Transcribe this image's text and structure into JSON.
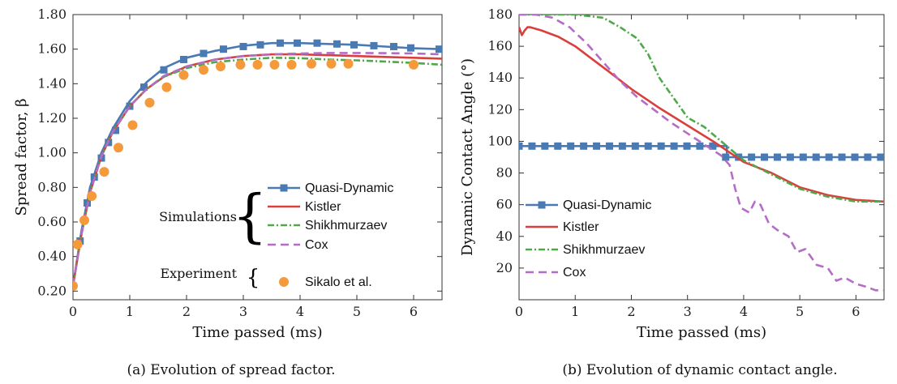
{
  "chart_data": [
    {
      "type": "line",
      "caption": "(a) Evolution of spread factor.",
      "xlabel": "Time passed (ms)",
      "ylabel": "Spread factor, β",
      "xlim": [
        0,
        6.5
      ],
      "ylim": [
        0.15,
        1.8
      ],
      "xticks": [
        "0",
        "1",
        "2",
        "3",
        "4",
        "5",
        "6"
      ],
      "yticks": [
        "0.20",
        "0.40",
        "0.60",
        "0.80",
        "1.00",
        "1.20",
        "1.40",
        "1.60",
        "1.80"
      ],
      "grid": false,
      "legend_position": "bottom-right",
      "legend_groups": [
        {
          "label": "Simulations",
          "brace": "{",
          "entries": [
            "Quasi-Dynamic",
            "Kistler",
            "Shikhmurzaev",
            "Cox"
          ]
        },
        {
          "label": "Experiment",
          "brace": "{",
          "entries": [
            "Sikalo et al."
          ]
        }
      ],
      "series": [
        {
          "name": "Quasi-Dynamic",
          "color": "#4a7ab4",
          "style": "solid",
          "marker": "square",
          "x": [
            0,
            0.15,
            0.3,
            0.5,
            0.7,
            1.0,
            1.3,
            1.6,
            2.0,
            2.5,
            3.0,
            3.5,
            4.0,
            4.5,
            5.0,
            5.5,
            6.0,
            6.5
          ],
          "y": [
            0.23,
            0.55,
            0.8,
            1.0,
            1.14,
            1.3,
            1.41,
            1.49,
            1.55,
            1.59,
            1.62,
            1.635,
            1.635,
            1.63,
            1.625,
            1.615,
            1.605,
            1.6
          ],
          "marker_x": [
            0,
            0.125,
            0.25,
            0.375,
            0.5,
            0.625,
            0.75,
            1.0,
            1.25,
            1.6,
            1.95,
            2.3,
            2.65,
            3.0,
            3.3,
            3.65,
            3.95,
            4.3,
            4.65,
            4.95,
            5.3,
            5.65,
            5.95,
            6.45
          ],
          "marker_y": [
            0.23,
            0.49,
            0.71,
            0.86,
            0.97,
            1.06,
            1.13,
            1.27,
            1.38,
            1.48,
            1.54,
            1.575,
            1.6,
            1.615,
            1.625,
            1.635,
            1.635,
            1.635,
            1.63,
            1.625,
            1.62,
            1.615,
            1.607,
            1.6
          ]
        },
        {
          "name": "Kistler",
          "color": "#d9403d",
          "style": "solid",
          "marker": "none",
          "x": [
            0,
            0.15,
            0.3,
            0.5,
            0.7,
            1.0,
            1.3,
            1.6,
            2.0,
            2.5,
            3.0,
            3.5,
            4.0,
            4.5,
            5.0,
            5.5,
            6.0,
            6.5
          ],
          "y": [
            0.23,
            0.53,
            0.77,
            0.98,
            1.12,
            1.27,
            1.37,
            1.44,
            1.5,
            1.54,
            1.56,
            1.57,
            1.57,
            1.565,
            1.56,
            1.555,
            1.55,
            1.545
          ]
        },
        {
          "name": "Shikhmurzaev",
          "color": "#4fa84a",
          "style": "dashdot",
          "marker": "none",
          "x": [
            0,
            0.15,
            0.3,
            0.5,
            0.7,
            1.0,
            1.3,
            1.6,
            2.0,
            2.5,
            3.0,
            3.5,
            4.0,
            4.5,
            5.0,
            5.5,
            6.0,
            6.5
          ],
          "y": [
            0.23,
            0.53,
            0.77,
            0.98,
            1.12,
            1.27,
            1.37,
            1.44,
            1.49,
            1.525,
            1.54,
            1.55,
            1.548,
            1.54,
            1.535,
            1.528,
            1.52,
            1.51
          ]
        },
        {
          "name": "Cox",
          "color": "#b56cc6",
          "style": "dashed",
          "marker": "none",
          "x": [
            0,
            0.15,
            0.3,
            0.5,
            0.7,
            1.0,
            1.3,
            1.6,
            2.0,
            2.5,
            3.0,
            3.5,
            4.0,
            4.5,
            5.0,
            5.5,
            6.0,
            6.5
          ],
          "y": [
            0.23,
            0.53,
            0.77,
            0.98,
            1.12,
            1.27,
            1.37,
            1.445,
            1.5,
            1.54,
            1.56,
            1.57,
            1.575,
            1.578,
            1.578,
            1.577,
            1.575,
            1.57
          ]
        },
        {
          "name": "Sikalo et al.",
          "color": "#f59a3a",
          "style": "none",
          "marker": "circle",
          "x": [
            0.0,
            0.08,
            0.2,
            0.33,
            0.55,
            0.8,
            1.05,
            1.35,
            1.65,
            1.95,
            2.3,
            2.6,
            2.95,
            3.25,
            3.55,
            3.85,
            4.2,
            4.55,
            4.85,
            6.0
          ],
          "y": [
            0.23,
            0.47,
            0.61,
            0.75,
            0.89,
            1.03,
            1.16,
            1.29,
            1.38,
            1.45,
            1.48,
            1.5,
            1.51,
            1.51,
            1.51,
            1.51,
            1.515,
            1.515,
            1.515,
            1.51
          ]
        }
      ]
    },
    {
      "type": "line",
      "caption": "(b) Evolution of dynamic contact angle.",
      "xlabel": "Time passed (ms)",
      "ylabel": "Dynamic Contact Angle (°)",
      "xlim": [
        0,
        6.5
      ],
      "ylim": [
        0,
        180
      ],
      "xticks": [
        "0",
        "1",
        "2",
        "3",
        "4",
        "5",
        "6"
      ],
      "yticks": [
        "20",
        "40",
        "60",
        "80",
        "100",
        "120",
        "140",
        "160",
        "180"
      ],
      "grid": false,
      "legend_position": "bottom-left",
      "series": [
        {
          "name": "Quasi-Dynamic",
          "color": "#4a7ab4",
          "style": "solid",
          "marker": "square",
          "x": [
            0,
            3.7,
            3.7,
            6.5
          ],
          "y": [
            97,
            97,
            90,
            90
          ],
          "marker_x": [
            0,
            0.23,
            0.46,
            0.69,
            0.92,
            1.15,
            1.38,
            1.61,
            1.84,
            2.07,
            2.3,
            2.53,
            2.76,
            2.99,
            3.22,
            3.45,
            3.68,
            3.91,
            4.14,
            4.37,
            4.6,
            4.83,
            5.06,
            5.29,
            5.52,
            5.75,
            5.98,
            6.21,
            6.44
          ],
          "marker_y": [
            97,
            97,
            97,
            97,
            97,
            97,
            97,
            97,
            97,
            97,
            97,
            97,
            97,
            97,
            97,
            97,
            90,
            90,
            90,
            90,
            90,
            90,
            90,
            90,
            90,
            90,
            90,
            90,
            90
          ]
        },
        {
          "name": "Kistler",
          "color": "#d9403d",
          "style": "solid",
          "marker": "none",
          "x": [
            0,
            0.05,
            0.1,
            0.15,
            0.2,
            0.4,
            0.7,
            1.0,
            1.3,
            1.6,
            2.0,
            2.5,
            3.0,
            3.5,
            4.0,
            4.5,
            5.0,
            5.5,
            6.0,
            6.5
          ],
          "y": [
            172,
            167,
            170,
            172,
            172,
            170,
            166,
            160,
            152,
            144,
            133,
            121,
            110,
            99,
            87,
            80,
            71,
            66,
            63,
            62
          ]
        },
        {
          "name": "Shikhmurzaev",
          "color": "#4fa84a",
          "style": "dashdot",
          "marker": "none",
          "x": [
            0,
            0.5,
            1.0,
            1.5,
            1.8,
            2.1,
            2.3,
            2.5,
            2.7,
            2.9,
            3.0,
            3.3,
            3.6,
            4.0,
            4.5,
            5.0,
            5.5,
            6.0,
            6.5
          ],
          "y": [
            180,
            180,
            180,
            178,
            172,
            165,
            155,
            140,
            130,
            120,
            115,
            109,
            100,
            88,
            79,
            70,
            65,
            62,
            62
          ]
        },
        {
          "name": "Cox",
          "color": "#b56cc6",
          "style": "dashed",
          "marker": "none",
          "x": [
            0,
            0.3,
            0.6,
            0.9,
            1.2,
            1.5,
            1.8,
            2.1,
            2.4,
            2.7,
            3.0,
            3.3,
            3.6,
            3.75,
            3.85,
            3.95,
            4.1,
            4.2,
            4.3,
            4.45,
            4.6,
            4.8,
            4.95,
            5.1,
            5.3,
            5.5,
            5.65,
            5.8,
            6.0,
            6.2,
            6.35,
            6.5
          ],
          "y": [
            180,
            180,
            178,
            172,
            162,
            150,
            138,
            128,
            120,
            112,
            105,
            98,
            91,
            85,
            70,
            58,
            55,
            62,
            60,
            48,
            44,
            40,
            30,
            32,
            22,
            20,
            12,
            14,
            10,
            8,
            6,
            6
          ]
        }
      ]
    }
  ]
}
